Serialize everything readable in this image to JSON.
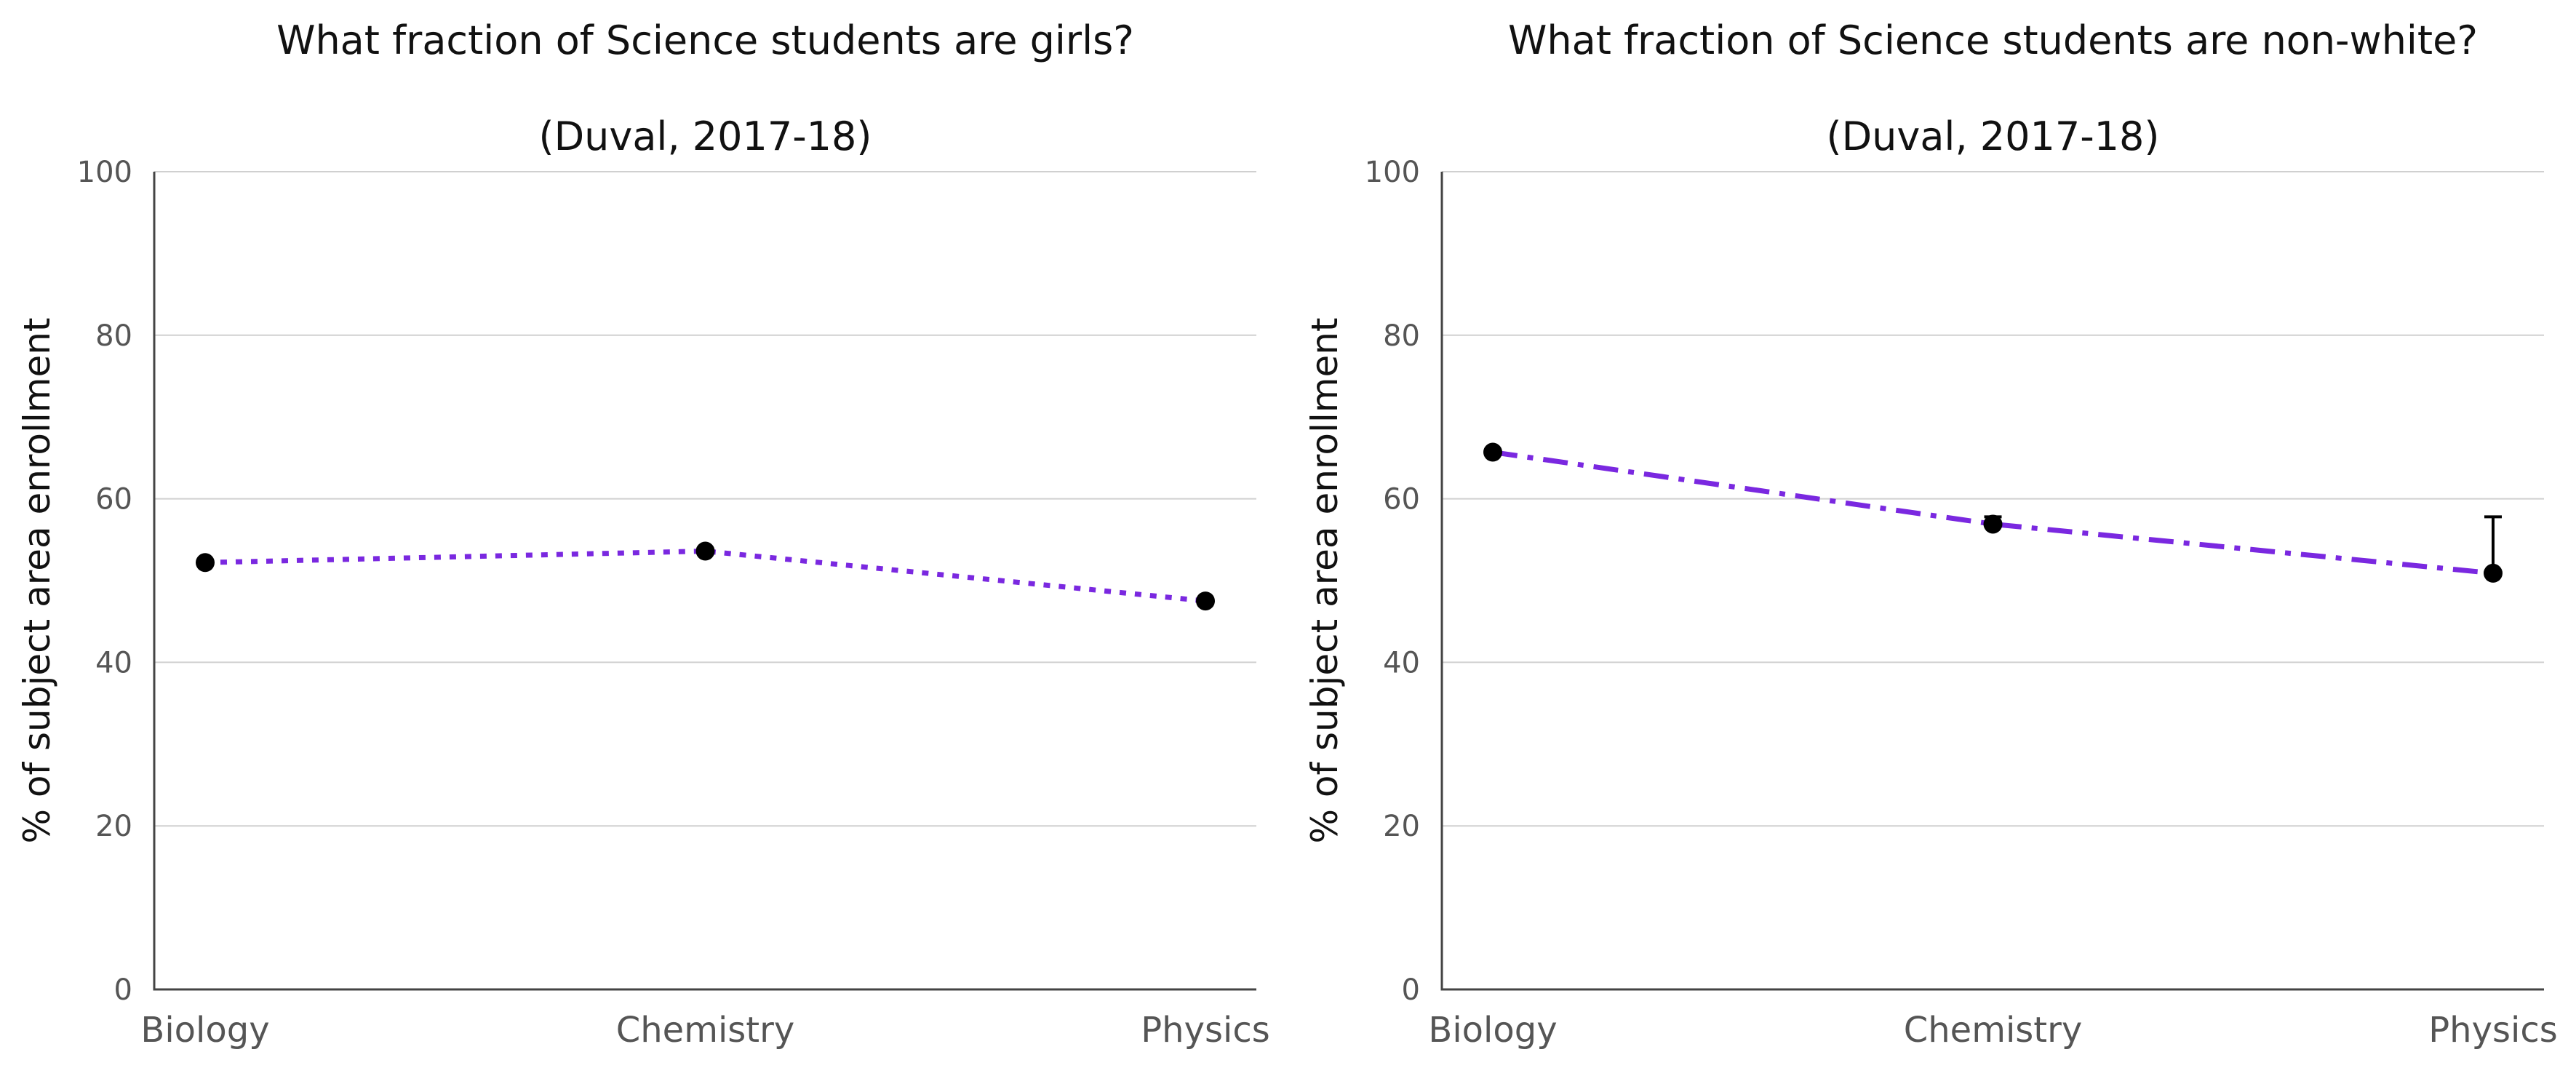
{
  "chart_data": [
    {
      "type": "line",
      "title": "What fraction of Science students are girls?",
      "subtitle": "(Duval, 2017-18)",
      "xlabel": "",
      "ylabel": "% of subject area enrollment",
      "categories": [
        "Biology",
        "Chemistry",
        "Physics"
      ],
      "ylim": [
        0,
        100
      ],
      "yticks": [
        0,
        20,
        40,
        60,
        80,
        100
      ],
      "grid": true,
      "line_style": "dotted",
      "line_color": "#7a28e0",
      "marker_color": "#000000",
      "values": [
        52.2,
        53.6,
        47.5
      ],
      "error_upper": [
        null,
        null,
        null
      ]
    },
    {
      "type": "line",
      "title": "What fraction of Science students are non-white?",
      "subtitle": "(Duval, 2017-18)",
      "xlabel": "",
      "ylabel": "% of subject area enrollment",
      "categories": [
        "Biology",
        "Chemistry",
        "Physics"
      ],
      "ylim": [
        0,
        100
      ],
      "yticks": [
        0,
        20,
        40,
        60,
        80,
        100
      ],
      "grid": true,
      "line_style": "dash-dot",
      "line_color": "#7a28e0",
      "marker_color": "#000000",
      "values": [
        65.7,
        56.9,
        50.9
      ],
      "error_upper": [
        null,
        57.8,
        57.8
      ]
    }
  ]
}
